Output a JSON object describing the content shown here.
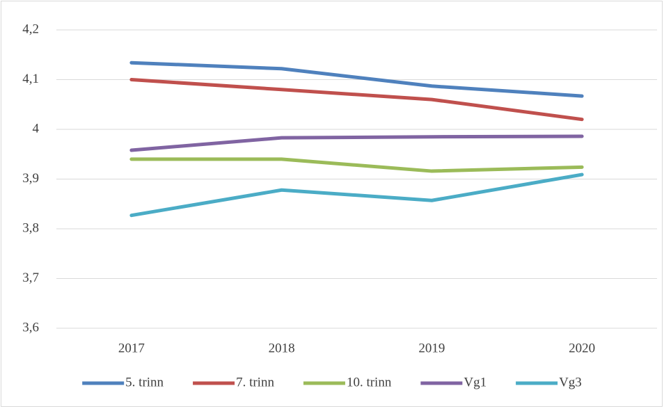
{
  "chart_data": {
    "type": "line",
    "categories": [
      "2017",
      "2018",
      "2019",
      "2020"
    ],
    "series": [
      {
        "name": "5. trinn",
        "color": "#4f81bd",
        "values": [
          4.134,
          4.122,
          4.087,
          4.067
        ]
      },
      {
        "name": "7. trinn",
        "color": "#c0504d",
        "values": [
          4.1,
          4.08,
          4.06,
          4.02
        ]
      },
      {
        "name": "10. trinn",
        "color": "#9bbb59",
        "values": [
          3.94,
          3.94,
          3.916,
          3.924
        ]
      },
      {
        "name": "Vg1",
        "color": "#8064a2",
        "values": [
          3.958,
          3.983,
          3.985,
          3.986
        ]
      },
      {
        "name": "Vg3",
        "color": "#4bacc6",
        "values": [
          3.827,
          3.878,
          3.857,
          3.909
        ]
      }
    ],
    "ylim": [
      3.6,
      4.2
    ],
    "yticks": [
      {
        "value": 3.6,
        "label": "3,6"
      },
      {
        "value": 3.7,
        "label": "3,7"
      },
      {
        "value": 3.8,
        "label": "3,8"
      },
      {
        "value": 3.9,
        "label": "3,9"
      },
      4,
      {
        "value": 4.1,
        "label": "4,1"
      },
      {
        "value": 4.2,
        "label": "4,2"
      }
    ],
    "grid": true,
    "legend": "bottom"
  }
}
